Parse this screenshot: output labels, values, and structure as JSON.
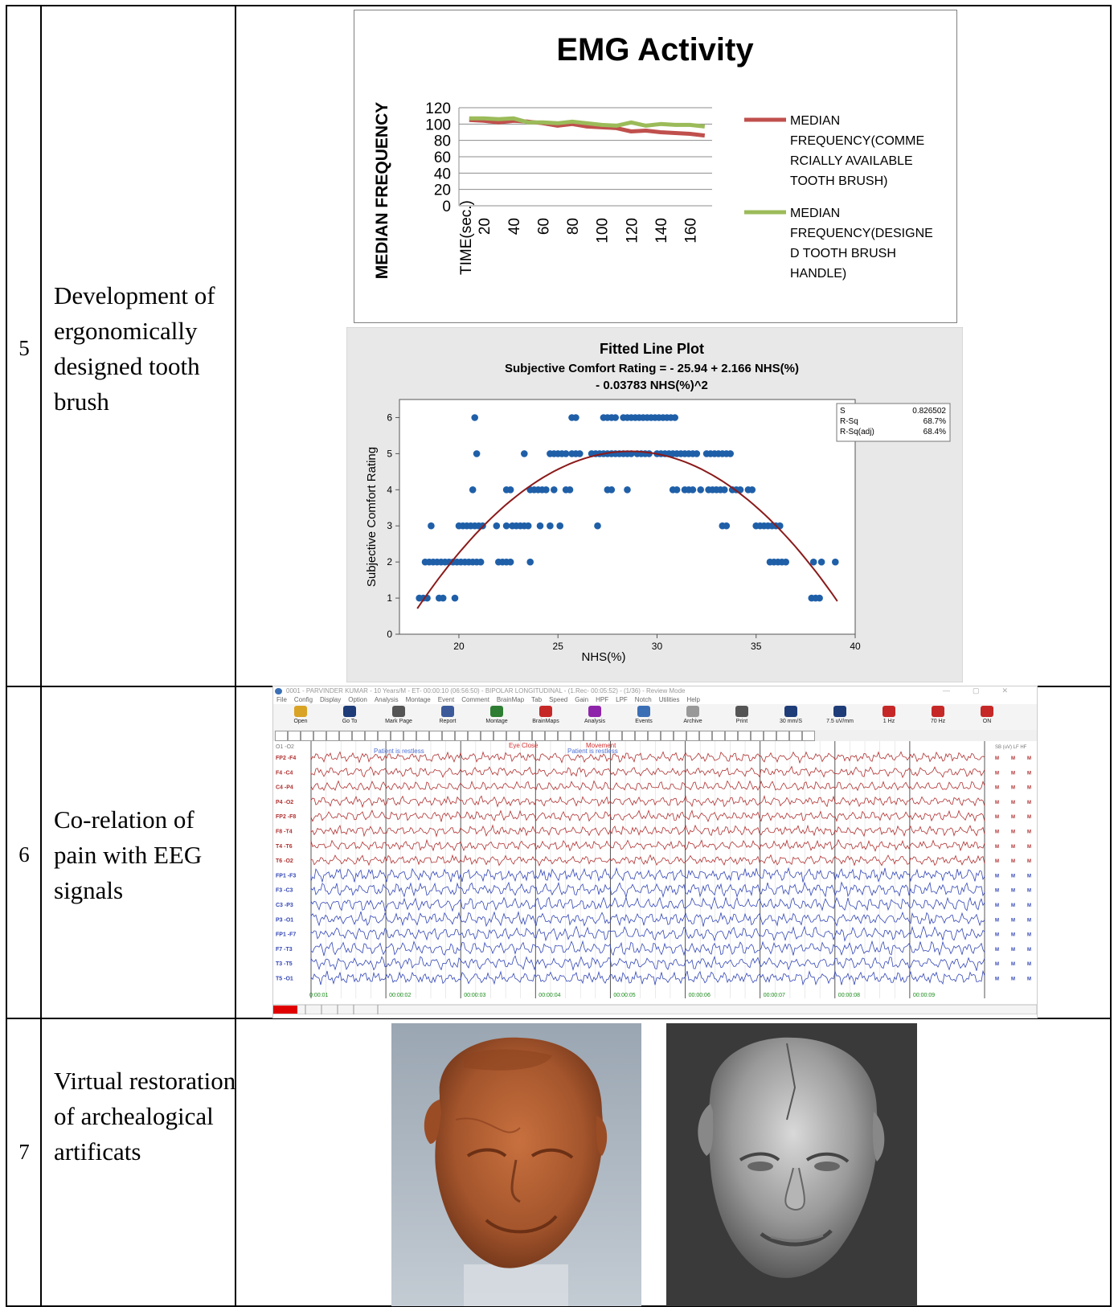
{
  "rows": [
    {
      "number": "5",
      "description": "Development of ergonomically designed tooth brush"
    },
    {
      "number": "6",
      "description": "Co-relation of pain with EEG signals"
    },
    {
      "number": "7",
      "description": "Virtual restoration of archealogical artificats"
    }
  ],
  "emg_chart": {
    "chart_data": {
      "type": "line",
      "title": "EMG Activity",
      "xlabel": "TIME(sec.)",
      "ylabel": "MEDIAN FREQUENCY",
      "x": [
        10,
        20,
        30,
        40,
        50,
        60,
        70,
        80,
        90,
        100,
        110,
        120,
        130,
        140,
        150,
        160,
        170
      ],
      "x_tick_labels": [
        "20",
        "40",
        "60",
        "80",
        "100",
        "120",
        "140",
        "160"
      ],
      "y_tick_labels": [
        "120",
        "100",
        "80",
        "60",
        "40",
        "20",
        "0"
      ],
      "ylim": [
        0,
        120
      ],
      "grid": true,
      "legend_position": "right",
      "series": [
        {
          "name": "MEDIAN FREQUENCY(COMMERCIALLY AVAILABLE TOOTH BRUSH)",
          "color": "#c0504d",
          "values": [
            105,
            104,
            102,
            104,
            103,
            101,
            98,
            100,
            97,
            96,
            95,
            91,
            92,
            90,
            89,
            88,
            86
          ]
        },
        {
          "name": "MEDIAN FREQUENCY(DESIGNED TOOTH BRUSH HANDLE)",
          "color": "#9bbb59",
          "values": [
            107,
            107,
            106,
            107,
            102,
            102,
            101,
            103,
            101,
            99,
            98,
            102,
            98,
            100,
            99,
            99,
            97
          ]
        }
      ]
    },
    "legend_lines": {
      "s1": [
        "MEDIAN",
        "FREQUENCY(COMME",
        "RCIALLY AVAILABLE",
        "TOOTH BRUSH)"
      ],
      "s2": [
        "MEDIAN",
        "FREQUENCY(DESIGNE",
        "D TOOTH BRUSH",
        "HANDLE)"
      ]
    }
  },
  "fitted_plot": {
    "chart_data": {
      "type": "scatter",
      "title": "Fitted Line Plot",
      "subtitle_line1": "Subjective Comfort Rating = - 25.94 + 2.166 NHS(%)",
      "subtitle_line2": "- 0.03783 NHS(%)^2",
      "xlabel": "NHS(%)",
      "ylabel": "Subjective Comfort Rating",
      "xlim": [
        17,
        40
      ],
      "ylim": [
        0,
        6.5
      ],
      "x_ticks": [
        20,
        25,
        30,
        35,
        40
      ],
      "y_ticks": [
        0,
        1,
        2,
        3,
        4,
        5,
        6
      ],
      "fit": {
        "intercept": -25.94,
        "b1": 2.166,
        "b2": -0.03783,
        "x_range": [
          17.9,
          39.1
        ],
        "color": "#8b1a1a"
      },
      "point_color": "#1f5fa8",
      "points": [
        [
          18.0,
          1
        ],
        [
          18.2,
          1
        ],
        [
          18.4,
          1
        ],
        [
          19.0,
          1
        ],
        [
          19.2,
          1
        ],
        [
          19.8,
          1
        ],
        [
          18.3,
          2
        ],
        [
          18.5,
          2
        ],
        [
          18.7,
          2
        ],
        [
          18.9,
          2
        ],
        [
          19.1,
          2
        ],
        [
          19.3,
          2
        ],
        [
          19.5,
          2
        ],
        [
          19.7,
          2
        ],
        [
          19.9,
          2
        ],
        [
          20.1,
          2
        ],
        [
          20.3,
          2
        ],
        [
          20.5,
          2
        ],
        [
          20.7,
          2
        ],
        [
          20.9,
          2
        ],
        [
          21.1,
          2
        ],
        [
          22.0,
          2
        ],
        [
          22.2,
          2
        ],
        [
          22.4,
          2
        ],
        [
          22.6,
          2
        ],
        [
          23.6,
          2
        ],
        [
          18.6,
          3
        ],
        [
          20.0,
          3
        ],
        [
          20.2,
          3
        ],
        [
          20.4,
          3
        ],
        [
          20.6,
          3
        ],
        [
          20.8,
          3
        ],
        [
          21.0,
          3
        ],
        [
          21.2,
          3
        ],
        [
          21.9,
          3
        ],
        [
          22.4,
          3
        ],
        [
          22.7,
          3
        ],
        [
          22.9,
          3
        ],
        [
          23.1,
          3
        ],
        [
          23.3,
          3
        ],
        [
          23.5,
          3
        ],
        [
          24.1,
          3
        ],
        [
          24.6,
          3
        ],
        [
          25.1,
          3
        ],
        [
          27.0,
          3
        ],
        [
          33.3,
          3
        ],
        [
          33.5,
          3
        ],
        [
          35.0,
          3
        ],
        [
          35.2,
          3
        ],
        [
          35.4,
          3
        ],
        [
          35.6,
          3
        ],
        [
          35.8,
          3
        ],
        [
          36.0,
          3
        ],
        [
          36.2,
          3
        ],
        [
          20.7,
          4
        ],
        [
          22.4,
          4
        ],
        [
          22.6,
          4
        ],
        [
          23.6,
          4
        ],
        [
          23.8,
          4
        ],
        [
          24.0,
          4
        ],
        [
          24.2,
          4
        ],
        [
          24.4,
          4
        ],
        [
          24.8,
          4
        ],
        [
          25.4,
          4
        ],
        [
          25.6,
          4
        ],
        [
          27.5,
          4
        ],
        [
          27.7,
          4
        ],
        [
          28.5,
          4
        ],
        [
          30.8,
          4
        ],
        [
          31.0,
          4
        ],
        [
          31.4,
          4
        ],
        [
          31.6,
          4
        ],
        [
          31.8,
          4
        ],
        [
          32.2,
          4
        ],
        [
          32.6,
          4
        ],
        [
          32.8,
          4
        ],
        [
          33.0,
          4
        ],
        [
          33.2,
          4
        ],
        [
          33.4,
          4
        ],
        [
          33.8,
          4
        ],
        [
          34.0,
          4
        ],
        [
          34.2,
          4
        ],
        [
          34.6,
          4
        ],
        [
          34.8,
          4
        ],
        [
          20.9,
          5
        ],
        [
          23.3,
          5
        ],
        [
          24.6,
          5
        ],
        [
          24.8,
          5
        ],
        [
          25.0,
          5
        ],
        [
          25.2,
          5
        ],
        [
          25.4,
          5
        ],
        [
          25.7,
          5
        ],
        [
          25.9,
          5
        ],
        [
          26.1,
          5
        ],
        [
          26.7,
          5
        ],
        [
          26.9,
          5
        ],
        [
          27.1,
          5
        ],
        [
          27.3,
          5
        ],
        [
          27.5,
          5
        ],
        [
          27.7,
          5
        ],
        [
          27.9,
          5
        ],
        [
          28.1,
          5
        ],
        [
          28.3,
          5
        ],
        [
          28.5,
          5
        ],
        [
          28.7,
          5
        ],
        [
          29.0,
          5
        ],
        [
          29.2,
          5
        ],
        [
          29.4,
          5
        ],
        [
          29.6,
          5
        ],
        [
          30.0,
          5
        ],
        [
          30.2,
          5
        ],
        [
          30.4,
          5
        ],
        [
          30.6,
          5
        ],
        [
          30.8,
          5
        ],
        [
          31.0,
          5
        ],
        [
          31.2,
          5
        ],
        [
          31.4,
          5
        ],
        [
          31.6,
          5
        ],
        [
          31.8,
          5
        ],
        [
          32.0,
          5
        ],
        [
          32.5,
          5
        ],
        [
          32.7,
          5
        ],
        [
          32.9,
          5
        ],
        [
          33.1,
          5
        ],
        [
          33.3,
          5
        ],
        [
          33.5,
          5
        ],
        [
          33.7,
          5
        ],
        [
          20.8,
          6
        ],
        [
          25.7,
          6
        ],
        [
          25.9,
          6
        ],
        [
          27.3,
          6
        ],
        [
          27.5,
          6
        ],
        [
          27.7,
          6
        ],
        [
          27.9,
          6
        ],
        [
          28.3,
          6
        ],
        [
          28.5,
          6
        ],
        [
          28.7,
          6
        ],
        [
          28.9,
          6
        ],
        [
          29.1,
          6
        ],
        [
          29.3,
          6
        ],
        [
          29.5,
          6
        ],
        [
          29.7,
          6
        ],
        [
          29.9,
          6
        ],
        [
          30.1,
          6
        ],
        [
          30.3,
          6
        ],
        [
          30.5,
          6
        ],
        [
          30.7,
          6
        ],
        [
          30.9,
          6
        ],
        [
          35.7,
          2
        ],
        [
          35.9,
          2
        ],
        [
          36.1,
          2
        ],
        [
          36.3,
          2
        ],
        [
          36.5,
          2
        ],
        [
          37.9,
          2
        ],
        [
          38.3,
          2
        ],
        [
          39.0,
          2
        ],
        [
          37.8,
          1
        ],
        [
          38.0,
          1
        ],
        [
          38.2,
          1
        ]
      ]
    },
    "stats": [
      {
        "label": "S",
        "value": "0.826502"
      },
      {
        "label": "R-Sq",
        "value": "68.7%"
      },
      {
        "label": "R-Sq(adj)",
        "value": "68.4%"
      }
    ]
  },
  "eeg": {
    "title": "0001 - PARVINDER KUMAR - 10 Years/M - ET- 00:00:10 (06:56:50) - BIPOLAR LONGITUDINAL - (1.Rec- 00:05:52) - (1/36) - Review Mode",
    "menu": [
      "File",
      "Config",
      "Display",
      "Option",
      "Analysis",
      "Montage",
      "Event",
      "Comment",
      "BrainMap",
      "Tab",
      "Speed",
      "Gain",
      "HPF",
      "LPF",
      "Notch",
      "Utilities",
      "Help"
    ],
    "toolbar": [
      "Open",
      "Go To",
      "Mark Page",
      "Report",
      "Montage",
      "BrainMaps",
      "Analysis",
      "Events",
      "Archive",
      "Print",
      "30 mm/S",
      "7.5 uV/mm",
      "1 Hz",
      "70 Hz",
      "ON"
    ],
    "channels_red": [
      "FP2 -F4",
      "F4 -C4",
      "C4 -P4",
      "P4 -O2",
      "FP2 -F8",
      "F8 -T4",
      "T4 -T6",
      "T6 -O2"
    ],
    "channels_blue": [
      "FP1 -F3",
      "F3 -C3",
      "C3 -P3",
      "P3 -O1",
      "FP1 -F7",
      "F7 -T3",
      "T3 -T5",
      "T5 -O1"
    ],
    "header_left": "O1 -O2",
    "header_right": "SB (uV) LF  HF",
    "annotations": {
      "restless1": "Patient is restless",
      "eye": "Eye Close",
      "movement": "Movement",
      "restless2": "Patient is restless"
    },
    "times": [
      "0:00:01",
      "00:00:02",
      "00:00:03",
      "00:00:04",
      "00:00:05",
      "00:00:06",
      "00:00:07",
      "00:00:08",
      "00:00:09"
    ],
    "status_marker": "M"
  },
  "artifact": {
    "original_caption": "",
    "restored_caption": ""
  }
}
